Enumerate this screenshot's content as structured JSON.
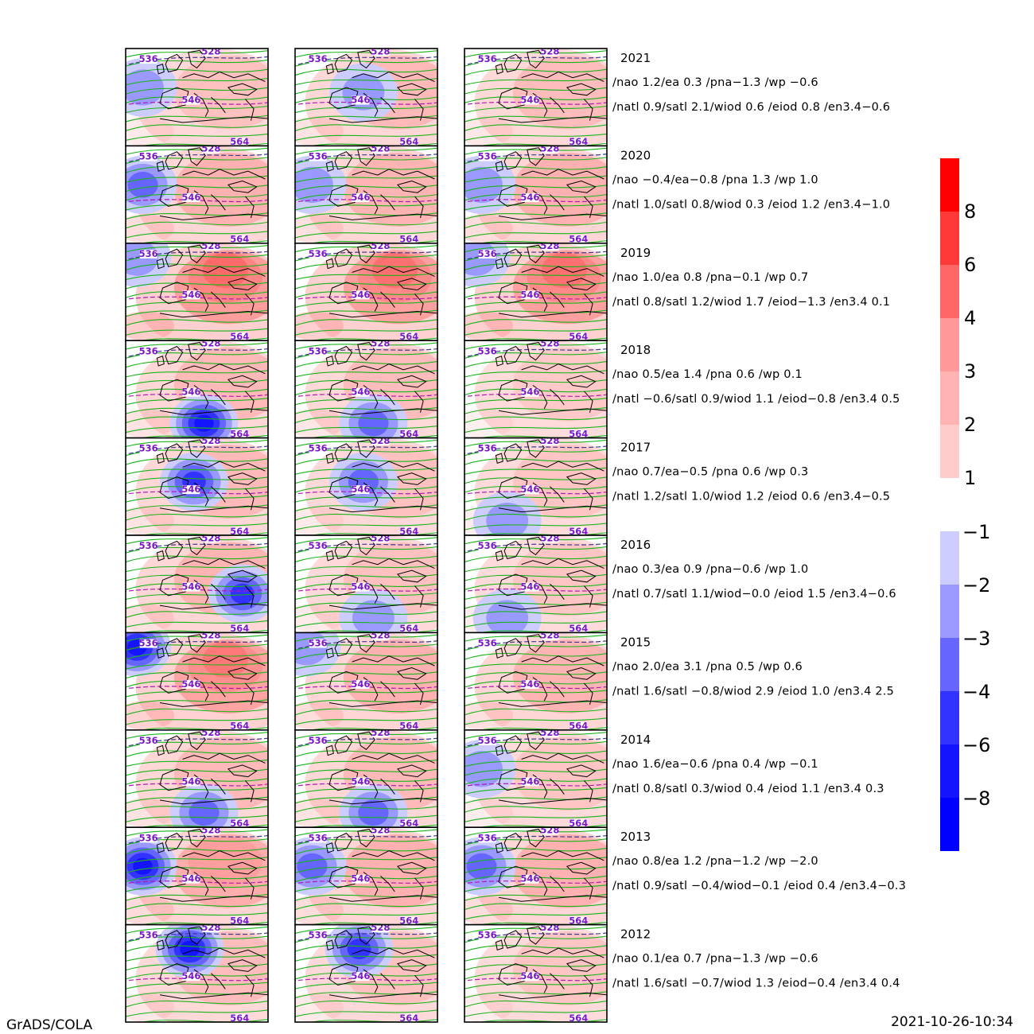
{
  "footer": {
    "left": "GrADS/COLA",
    "right": "2021-10-26-10:34"
  },
  "colorbar": {
    "positive": {
      "labels": [
        "8",
        "6",
        "4",
        "3",
        "2",
        "1"
      ],
      "colors": [
        "#ff0000",
        "#ff3838",
        "#ff6666",
        "#ff9999",
        "#ffb3b3",
        "#ffcccc"
      ]
    },
    "negative": {
      "labels": [
        "-1",
        "-2",
        "-3",
        "-4",
        "-6",
        "-8"
      ],
      "colors": [
        "#ccccff",
        "#9999ff",
        "#6666ff",
        "#3333ff",
        "#1414ff",
        "#0000ff"
      ]
    }
  },
  "contour_labels": [
    "536",
    "528",
    "546",
    "564"
  ],
  "rows": [
    {
      "year": "2021",
      "line1": "/nao  1.2/ea 0.3 /pna−1.3 /wp −0.6",
      "line2": "/natl  0.9/satl  2.1/wiod 0.6 /eiod 0.8 /en3.4−0.6",
      "panels": [
        {
          "w": 0.35,
          "b": "-2,w"
        },
        {
          "w": 0.45,
          "b": "-2,c"
        },
        {
          "w": 0.4,
          "b": ""
        }
      ]
    },
    {
      "year": "2020",
      "line1": "/nao −0.4/ea−0.8 /pna 1.3 /wp  1.0",
      "line2": "/natl  1.0/satl  0.8/wiod 0.3 /eiod 1.2 /en3.4−1.0",
      "panels": [
        {
          "w": 0.55,
          "b": "-3,w"
        },
        {
          "w": 0.5,
          "b": "-2,w"
        },
        {
          "w": 0.55,
          "b": "-2,w"
        }
      ]
    },
    {
      "year": "2019",
      "line1": "/nao  1.0/ea 0.8 /pna−0.1 /wp  0.7",
      "line2": "/natl  0.8/satl  1.2/wiod 1.7 /eiod−1.3 /en3.4 0.1",
      "panels": [
        {
          "w": 0.85,
          "b": "-2,nw"
        },
        {
          "w": 0.8,
          "b": ""
        },
        {
          "w": 0.8,
          "b": "-2,nw"
        }
      ]
    },
    {
      "year": "2018",
      "line1": "/nao  0.5/ea 1.4 /pna 0.6 /wp  0.1",
      "line2": "/natl −0.6/satl  0.9/wiod 1.1 /eiod−0.8 /en3.4 0.5",
      "panels": [
        {
          "w": 0.45,
          "b": "-5,s"
        },
        {
          "w": 0.4,
          "b": "-3,s"
        },
        {
          "w": 0.25,
          "b": ""
        }
      ]
    },
    {
      "year": "2017",
      "line1": "/nao  0.7/ea−0.5 /pna 0.6 /wp  0.3",
      "line2": "/natl  1.2/satl  1.0/wiod 1.2 /eiod 0.6 /en3.4−0.5",
      "panels": [
        {
          "w": 0.45,
          "b": "-4,c"
        },
        {
          "w": 0.35,
          "b": "-3,c"
        },
        {
          "w": 0.3,
          "b": "-2,sw"
        }
      ]
    },
    {
      "year": "2016",
      "line1": "/nao  0.3/ea 0.9 /pna−0.6 /wp  1.0",
      "line2": "/natl  0.7/satl  1.1/wiod−0.0 /eiod 1.5 /en3.4−0.6",
      "panels": [
        {
          "w": 0.5,
          "b": "-4,se"
        },
        {
          "w": 0.35,
          "b": "-2,s"
        },
        {
          "w": 0.3,
          "b": "-2,sw"
        }
      ]
    },
    {
      "year": "2015",
      "line1": "/nao  2.0/ea 3.1 /pna 0.5 /wp  0.6",
      "line2": "/natl  1.6/satl −0.8/wiod 2.9 /eiod 1.0 /en3.4 2.5",
      "panels": [
        {
          "w": 0.75,
          "b": "-5,nw"
        },
        {
          "w": 0.55,
          "b": "-2,nw"
        },
        {
          "w": 0.5,
          "b": ""
        }
      ]
    },
    {
      "year": "2014",
      "line1": "/nao  1.6/ea−0.6 /pna 0.4 /wp −0.1",
      "line2": "/natl  0.8/satl  0.3/wiod 0.4 /eiod 1.1 /en3.4 0.3",
      "panels": [
        {
          "w": 0.45,
          "b": "-3,s"
        },
        {
          "w": 0.45,
          "b": "-3,s"
        },
        {
          "w": 0.3,
          "b": "-2,w"
        }
      ]
    },
    {
      "year": "2013",
      "line1": "/nao  0.8/ea 1.2 /pna−1.2 /wp −2.0",
      "line2": "/natl  0.9/satl −0.4/wiod−0.1 /eiod 0.4 /en3.4−0.3",
      "panels": [
        {
          "w": 0.6,
          "b": "-6,w"
        },
        {
          "w": 0.55,
          "b": "-3,w"
        },
        {
          "w": 0.55,
          "b": "-3,w"
        }
      ]
    },
    {
      "year": "2012",
      "line1": "/nao  0.1/ea 0.7 /pna−1.3 /wp −0.6",
      "line2": "/natl  1.6/satl −0.7/wiod 1.3 /eiod−0.4 /en3.4 0.4",
      "panels": [
        {
          "w": 0.4,
          "b": "-6,n"
        },
        {
          "w": 0.35,
          "b": "-4,n"
        },
        {
          "w": 0.3,
          "b": ""
        }
      ]
    }
  ]
}
